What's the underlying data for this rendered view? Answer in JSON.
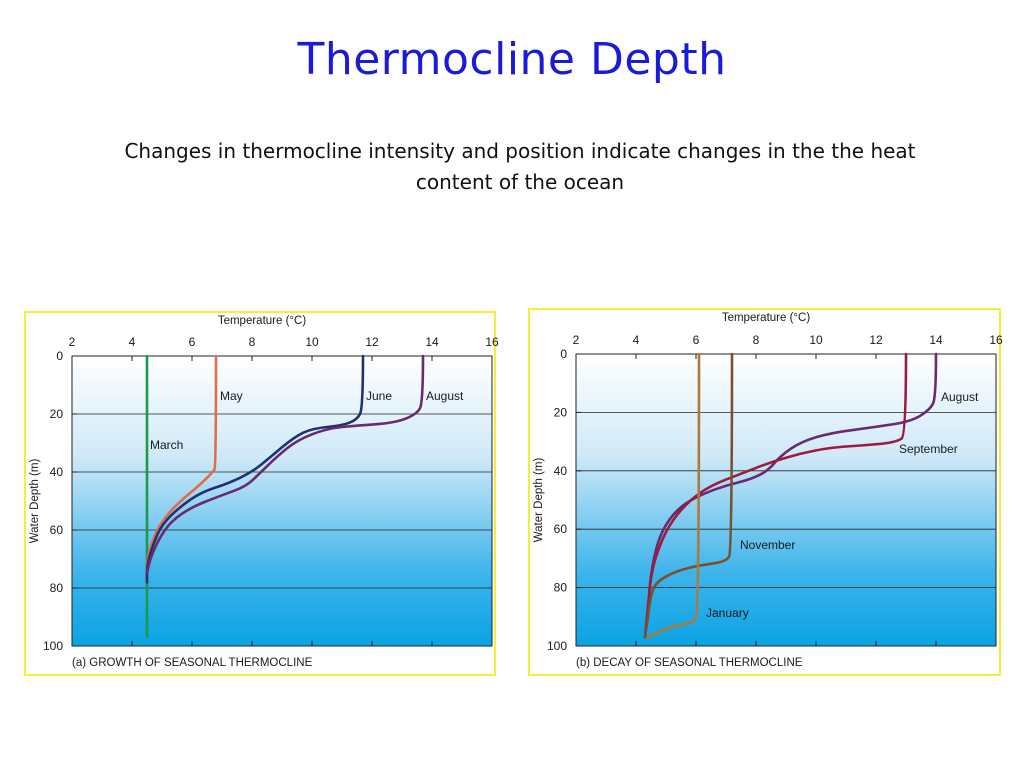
{
  "title": "Thermocline Depth",
  "subtitle": "Changes in thermocline intensity and position indicate changes in the the heat content of the ocean",
  "chart_data": [
    {
      "type": "line",
      "title": "(a) GROWTH OF SEASONAL THERMOCLINE",
      "xlabel": "Temperature (°C)",
      "ylabel": "Water Depth (m)",
      "xlim": [
        2,
        16
      ],
      "ylim": [
        0,
        100
      ],
      "y_inverted": true,
      "xticks": [
        2,
        4,
        6,
        8,
        10,
        12,
        14,
        16
      ],
      "yticks": [
        0,
        20,
        40,
        60,
        80,
        100
      ],
      "grid": "horizontal",
      "series": [
        {
          "name": "March",
          "color": "#1a9a4a",
          "points": [
            [
              4.5,
              0
            ],
            [
              4.5,
              30
            ],
            [
              4.5,
              60
            ],
            [
              4.5,
              97
            ]
          ]
        },
        {
          "name": "May",
          "color": "#e26b4b",
          "points": [
            [
              6.8,
              0
            ],
            [
              6.8,
              38
            ],
            [
              6.7,
              40
            ],
            [
              6.2,
              45
            ],
            [
              5.5,
              51
            ],
            [
              5,
              57
            ],
            [
              4.7,
              63
            ],
            [
              4.5,
              70
            ],
            [
              4.5,
              78
            ]
          ]
        },
        {
          "name": "June",
          "color": "#1e3270",
          "points": [
            [
              11.7,
              0
            ],
            [
              11.7,
              18
            ],
            [
              11.5,
              22
            ],
            [
              11,
              24
            ],
            [
              10,
              25
            ],
            [
              9.4,
              28
            ],
            [
              8.6,
              35
            ],
            [
              8,
              40
            ],
            [
              7.2,
              44
            ],
            [
              6.3,
              47
            ],
            [
              5.6,
              52
            ],
            [
              5,
              58
            ],
            [
              4.7,
              65
            ],
            [
              4.5,
              72
            ],
            [
              4.5,
              78
            ]
          ]
        },
        {
          "name": "August",
          "color": "#6a2a6e",
          "points": [
            [
              13.7,
              0
            ],
            [
              13.7,
              16
            ],
            [
              13.5,
              20
            ],
            [
              12.8,
              23
            ],
            [
              11.5,
              24
            ],
            [
              10.5,
              25
            ],
            [
              9.5,
              29
            ],
            [
              8.8,
              35
            ],
            [
              8.3,
              40
            ],
            [
              7.8,
              45
            ],
            [
              7,
              48
            ],
            [
              6,
              52
            ],
            [
              5.3,
              57
            ],
            [
              4.9,
              63
            ],
            [
              4.6,
              70
            ],
            [
              4.5,
              75
            ]
          ]
        }
      ]
    },
    {
      "type": "line",
      "title": "(b) DECAY OF SEASONAL THERMOCLINE",
      "xlabel": "Temperature (°C)",
      "ylabel": "Water Depth (m)",
      "xlim": [
        2,
        16
      ],
      "ylim": [
        0,
        100
      ],
      "y_inverted": true,
      "xticks": [
        2,
        4,
        6,
        8,
        10,
        12,
        14,
        16
      ],
      "yticks": [
        0,
        20,
        40,
        60,
        80,
        100
      ],
      "grid": "horizontal",
      "series": [
        {
          "name": "August",
          "color": "#6a2a6e",
          "points": [
            [
              14,
              0
            ],
            [
              14,
              15
            ],
            [
              13.8,
              19
            ],
            [
              13.2,
              23
            ],
            [
              12,
              25
            ],
            [
              10.5,
              27
            ],
            [
              9.5,
              30
            ],
            [
              8.8,
              35
            ],
            [
              8.4,
              40
            ],
            [
              7.8,
              43
            ],
            [
              7,
              45
            ],
            [
              6.2,
              48
            ],
            [
              5.5,
              52
            ],
            [
              5,
              58
            ],
            [
              4.7,
              65
            ],
            [
              4.5,
              75
            ],
            [
              4.4,
              87
            ],
            [
              4.3,
              97
            ]
          ]
        },
        {
          "name": "September",
          "color": "#9c1a3e",
          "points": [
            [
              13,
              0
            ],
            [
              13,
              28
            ],
            [
              12.7,
              30
            ],
            [
              12,
              31
            ],
            [
              10.5,
              32
            ],
            [
              9.5,
              34
            ],
            [
              8.5,
              37
            ],
            [
              7.5,
              41
            ],
            [
              6.5,
              45
            ],
            [
              5.8,
              50
            ],
            [
              5.2,
              57
            ],
            [
              4.8,
              65
            ],
            [
              4.5,
              75
            ],
            [
              4.4,
              87
            ],
            [
              4.3,
              97
            ]
          ]
        },
        {
          "name": "November",
          "color": "#7a5030",
          "points": [
            [
              7.2,
              0
            ],
            [
              7.2,
              68
            ],
            [
              7,
              71
            ],
            [
              6.4,
              72
            ],
            [
              5.8,
              73
            ],
            [
              5.2,
              75
            ],
            [
              4.7,
              78
            ],
            [
              4.5,
              82
            ],
            [
              4.4,
              90
            ],
            [
              4.3,
              97
            ]
          ]
        },
        {
          "name": "January",
          "color": "#b07838",
          "points": [
            [
              6.1,
              0
            ],
            [
              6.1,
              89
            ],
            [
              5.9,
              92
            ],
            [
              5.3,
              93
            ],
            [
              4.8,
              95
            ],
            [
              4.4,
              97
            ]
          ]
        }
      ]
    }
  ]
}
